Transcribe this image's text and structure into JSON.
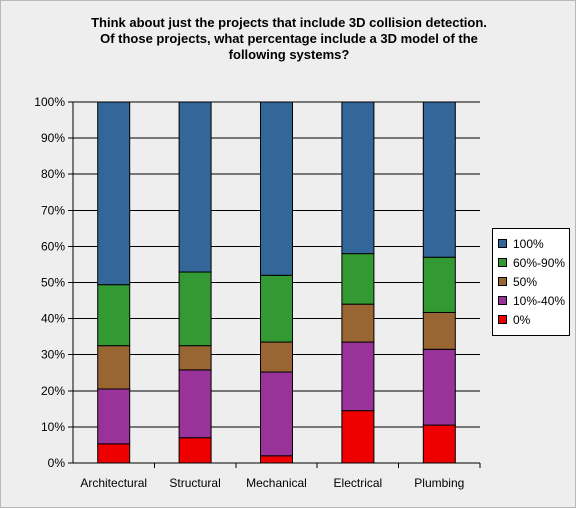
{
  "title_lines": [
    "Think about just the projects that include 3D collision detection.",
    "Of those projects, what percentage include a 3D model of the",
    "following systems?"
  ],
  "chart_data": {
    "type": "bar",
    "stacked": true,
    "title": "Think about just the projects that include 3D collision detection. Of those projects, what percentage include a 3D model of the following systems?",
    "categories": [
      "Architectural",
      "Structural",
      "Mechanical",
      "Electrical",
      "Plumbing"
    ],
    "series": [
      {
        "name": "0%",
        "color": "#ee0000",
        "values": [
          5.3,
          7.0,
          2.0,
          14.5,
          10.5
        ]
      },
      {
        "name": "10%-40%",
        "color": "#993399",
        "values": [
          15.2,
          18.8,
          23.2,
          19.0,
          21.0
        ]
      },
      {
        "name": "50%",
        "color": "#996633",
        "values": [
          12.0,
          6.7,
          8.3,
          10.5,
          10.2
        ]
      },
      {
        "name": "60%-90%",
        "color": "#339933",
        "values": [
          16.9,
          20.4,
          18.5,
          14.0,
          15.3
        ]
      },
      {
        "name": "100%",
        "color": "#336699",
        "values": [
          50.6,
          47.1,
          48.0,
          42.0,
          43.0
        ]
      }
    ],
    "ylim": [
      0,
      100
    ],
    "yticks": [
      "0%",
      "10%",
      "20%",
      "30%",
      "40%",
      "50%",
      "60%",
      "70%",
      "80%",
      "90%",
      "100%"
    ],
    "grid": true,
    "legend": "right",
    "legend_order": [
      "100%",
      "60%-90%",
      "50%",
      "10%-40%",
      "0%"
    ],
    "xlabel": "",
    "ylabel": ""
  }
}
